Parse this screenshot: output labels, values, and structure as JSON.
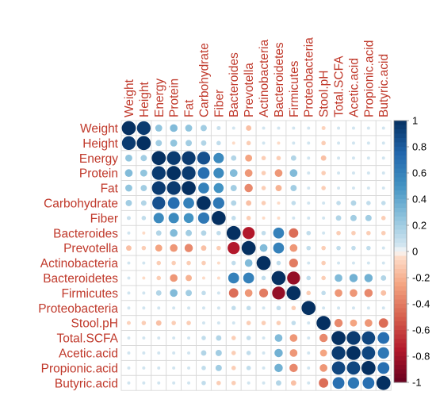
{
  "chart_data": {
    "type": "heatmap",
    "style": "corrplot-circle",
    "variables": [
      "Weight",
      "Height",
      "Energy",
      "Protein",
      "Fat",
      "Carbohydrate",
      "Fiber",
      "Bacteroides",
      "Prevotella",
      "Actinobacteria",
      "Bacteroidetes",
      "Firmicutes",
      "Proteobacteria",
      "Stool.pH",
      "Total.SCFA",
      "Acetic.acid",
      "Propionic.acid",
      "Butyric.acid"
    ],
    "matrix": [
      [
        1,
        0.95,
        0.25,
        0.3,
        0.25,
        0.2,
        0.08,
        0.05,
        -0.15,
        0.05,
        0.05,
        0.05,
        0.05,
        -0.08,
        0.05,
        0.05,
        0.05,
        0.05
      ],
      [
        0.95,
        1,
        0.2,
        0.25,
        0.2,
        0.15,
        0.1,
        -0.05,
        -0.1,
        0.05,
        -0.05,
        0.05,
        0.05,
        -0.1,
        0.05,
        0.05,
        0.05,
        0.05
      ],
      [
        0.25,
        0.2,
        1,
        0.95,
        0.95,
        0.85,
        0.55,
        0.15,
        -0.25,
        -0.1,
        -0.1,
        0.15,
        0.05,
        -0.15,
        0.05,
        0.05,
        0.05,
        0.05
      ],
      [
        0.3,
        0.25,
        0.95,
        1,
        0.95,
        0.7,
        0.55,
        0.3,
        -0.3,
        -0.1,
        -0.3,
        0.3,
        0.05,
        -0.1,
        0.05,
        0.05,
        0.05,
        0.05
      ],
      [
        0.25,
        0.2,
        0.95,
        0.95,
        1,
        0.6,
        0.5,
        0.2,
        -0.35,
        -0.1,
        -0.2,
        0.2,
        0.05,
        -0.1,
        0.05,
        0.05,
        0.05,
        0.05
      ],
      [
        0.2,
        0.15,
        0.85,
        0.7,
        0.6,
        1,
        0.65,
        0.15,
        -0.15,
        -0.1,
        -0.05,
        0.1,
        0.05,
        0.05,
        0.1,
        0.15,
        0.1,
        0.1
      ],
      [
        0.08,
        0.1,
        0.55,
        0.55,
        0.5,
        0.65,
        1,
        0.1,
        -0.1,
        -0.05,
        -0.05,
        0.05,
        0.05,
        0.05,
        0.15,
        0.2,
        0.2,
        -0.1
      ],
      [
        0.05,
        -0.05,
        0.15,
        0.3,
        0.2,
        0.15,
        0.1,
        1,
        -0.75,
        0.1,
        0.6,
        -0.45,
        0.1,
        0.05,
        -0.1,
        -0.1,
        -0.1,
        -0.1
      ],
      [
        -0.15,
        -0.1,
        -0.25,
        -0.3,
        -0.35,
        -0.15,
        -0.1,
        -0.75,
        1,
        0.3,
        0.6,
        -0.3,
        0.1,
        -0.1,
        0.1,
        0.1,
        0.1,
        0.05
      ],
      [
        0.05,
        0.05,
        -0.1,
        -0.1,
        -0.1,
        -0.1,
        -0.05,
        0.1,
        0.3,
        1,
        0.1,
        -0.4,
        0.05,
        -0.1,
        0.05,
        0.05,
        0.05,
        0.05
      ],
      [
        0.05,
        -0.05,
        -0.1,
        -0.3,
        -0.2,
        -0.05,
        -0.05,
        0.6,
        0.6,
        0.1,
        1,
        -0.85,
        0.1,
        -0.1,
        0.3,
        0.35,
        0.35,
        0.15
      ],
      [
        0.05,
        0.05,
        0.15,
        0.3,
        0.2,
        0.1,
        0.05,
        -0.45,
        -0.3,
        -0.4,
        -0.85,
        1,
        -0.1,
        0.1,
        -0.3,
        -0.3,
        -0.35,
        -0.15
      ],
      [
        0.05,
        0.05,
        0.05,
        0.05,
        0.05,
        0.05,
        0.05,
        0.1,
        0.1,
        0.05,
        0.1,
        -0.1,
        1,
        0.05,
        0.05,
        0.05,
        0.05,
        0.05
      ],
      [
        -0.08,
        -0.1,
        -0.15,
        -0.1,
        -0.1,
        0.05,
        0.05,
        0.05,
        -0.1,
        -0.1,
        -0.1,
        0.1,
        0.05,
        1,
        -0.35,
        -0.25,
        -0.3,
        -0.45
      ],
      [
        0.05,
        0.05,
        0.05,
        0.05,
        0.05,
        0.1,
        0.15,
        -0.1,
        0.1,
        0.05,
        0.3,
        -0.3,
        0.05,
        -0.35,
        1,
        0.95,
        0.9,
        0.7
      ],
      [
        0.05,
        0.05,
        0.05,
        0.05,
        0.05,
        0.15,
        0.2,
        -0.1,
        0.1,
        0.05,
        0.35,
        -0.3,
        0.05,
        -0.25,
        0.95,
        1,
        0.9,
        0.65
      ],
      [
        0.05,
        0.05,
        0.05,
        0.05,
        0.05,
        0.1,
        0.2,
        -0.1,
        0.1,
        0.05,
        0.35,
        -0.35,
        0.05,
        -0.3,
        0.9,
        0.9,
        1,
        0.7
      ],
      [
        0.05,
        0.05,
        0.05,
        0.05,
        0.05,
        0.1,
        -0.1,
        -0.1,
        0.05,
        0.05,
        0.15,
        -0.15,
        0.05,
        -0.45,
        0.7,
        0.65,
        0.7,
        1
      ]
    ],
    "legend": {
      "ticks": [
        "1",
        "0.8",
        "0.6",
        "0.4",
        "0.2",
        "0",
        "-0.2",
        "-0.4",
        "-0.6",
        "-0.8",
        "-1"
      ],
      "range": [
        -1,
        1
      ]
    },
    "colors": {
      "strong_positive": "#053061",
      "positive": "#2166ac",
      "mid_positive": "#4393c3",
      "light_positive": "#92c5de",
      "neutral": "#f7f7f7",
      "light_negative": "#f4a582",
      "mid_negative": "#d6604d",
      "negative": "#b2182b",
      "strong_negative": "#67001f",
      "label": "#c0392b",
      "grid": "#d9d9d9"
    }
  }
}
